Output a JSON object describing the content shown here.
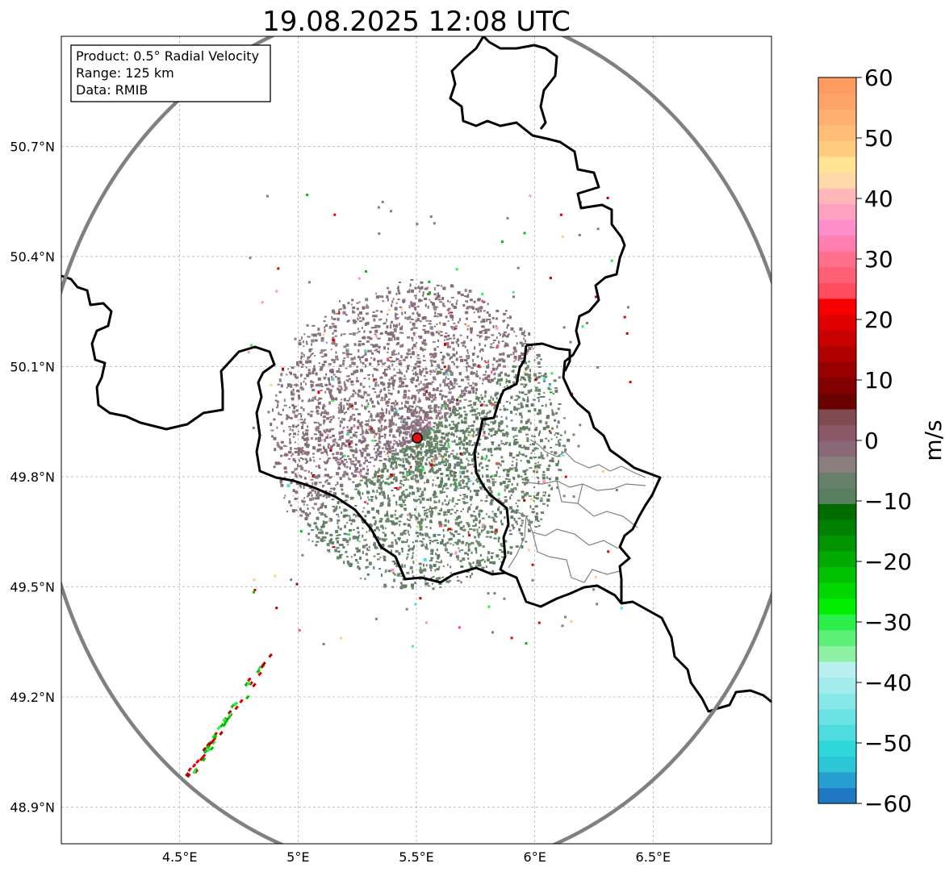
{
  "chart_data": {
    "type": "heatmap",
    "title": "19.08.2025 12:08 UTC",
    "info_box": [
      "Product: 0.5° Radial Velocity",
      "Range: 125 km",
      "Data: RMIB"
    ],
    "xlim": [
      4.0,
      7.0
    ],
    "ylim": [
      48.8,
      51.0
    ],
    "x_ticks": [
      {
        "value": 4.5,
        "label": "4.5°E"
      },
      {
        "value": 5.0,
        "label": "5°E"
      },
      {
        "value": 5.5,
        "label": "5.5°E"
      },
      {
        "value": 6.0,
        "label": "6°E"
      },
      {
        "value": 6.5,
        "label": "6.5°E"
      }
    ],
    "y_ticks": [
      {
        "value": 48.9,
        "label": "48.9°N"
      },
      {
        "value": 49.2,
        "label": "49.2°N"
      },
      {
        "value": 49.5,
        "label": "49.5°N"
      },
      {
        "value": 49.8,
        "label": "49.8°N"
      },
      {
        "value": 50.1,
        "label": "50.1°N"
      },
      {
        "value": 50.4,
        "label": "50.4°N"
      },
      {
        "value": 50.7,
        "label": "50.7°N"
      }
    ],
    "grid": true,
    "radar_site": {
      "lon": 5.505,
      "lat": 49.915
    },
    "range_ring_km": 125,
    "colorbar": {
      "label": "m/s",
      "min": -60,
      "max": 60,
      "ticks": [
        {
          "value": 60,
          "label": "60"
        },
        {
          "value": 50,
          "label": "50"
        },
        {
          "value": 40,
          "label": "40"
        },
        {
          "value": 30,
          "label": "30"
        },
        {
          "value": 20,
          "label": "20"
        },
        {
          "value": 10,
          "label": "10"
        },
        {
          "value": 0,
          "label": "0"
        },
        {
          "value": -10,
          "label": "−10"
        },
        {
          "value": -20,
          "label": "−20"
        },
        {
          "value": -30,
          "label": "−30"
        },
        {
          "value": -40,
          "label": "−40"
        },
        {
          "value": -50,
          "label": "−50"
        },
        {
          "value": -60,
          "label": "−60"
        }
      ],
      "colors": [
        "#1f78c1",
        "#269ecf",
        "#2dc6d6",
        "#2fd6da",
        "#4ddde0",
        "#6be3e4",
        "#88e8e8",
        "#a2eced",
        "#b8f0f0",
        "#8ef0a5",
        "#5cf078",
        "#2cf04a",
        "#00ee00",
        "#00d800",
        "#00c200",
        "#00aa00",
        "#009400",
        "#007f00",
        "#006c00",
        "#5a7f5e",
        "#66806a",
        "#8a7f7c",
        "#8a6878",
        "#8a5866",
        "#7f4a50",
        "#6b0000",
        "#820000",
        "#990000",
        "#b00000",
        "#c80000",
        "#e00000",
        "#f80000",
        "#ff4b5e",
        "#ff5f75",
        "#ff6e8a",
        "#ff7fb0",
        "#ff8fcc",
        "#ffa0c0",
        "#ffb8b8",
        "#ffd8a8",
        "#ffe496",
        "#ffcc80",
        "#ffbd78",
        "#ffb070",
        "#ffa468",
        "#ff9a60"
      ]
    },
    "colors": {
      "echo_outbound": "#87707e",
      "echo_inbound": "#637f63",
      "site_marker": "#e01010",
      "ring": "#808080"
    }
  }
}
